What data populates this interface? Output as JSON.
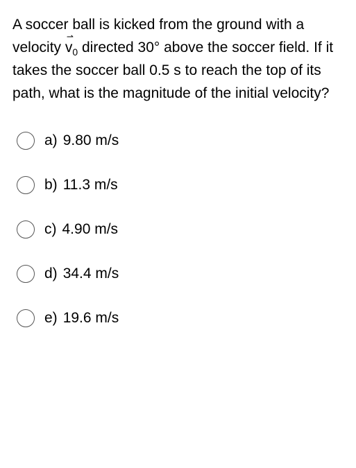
{
  "question": {
    "part1": "A soccer ball is kicked from the ground with a velocity ",
    "vector_symbol": "v",
    "vector_sub": "0",
    "part2": " directed 30° above the soccer field. If it takes the soccer ball 0.5 s to reach the top of its path, what is the magnitude of the initial velocity?"
  },
  "options": [
    {
      "letter": "a)",
      "text": "9.80 m/s"
    },
    {
      "letter": "b)",
      "text": "11.3 m/s"
    },
    {
      "letter": "c)",
      "text": "4.90 m/s"
    },
    {
      "letter": "d)",
      "text": "34.4 m/s"
    },
    {
      "letter": "e)",
      "text": "19.6 m/s"
    }
  ],
  "styling": {
    "font_size_question": 21,
    "font_size_options": 21,
    "radio_border_color": "#555555",
    "text_color": "#000000",
    "background_color": "#ffffff",
    "option_spacing": 38
  }
}
